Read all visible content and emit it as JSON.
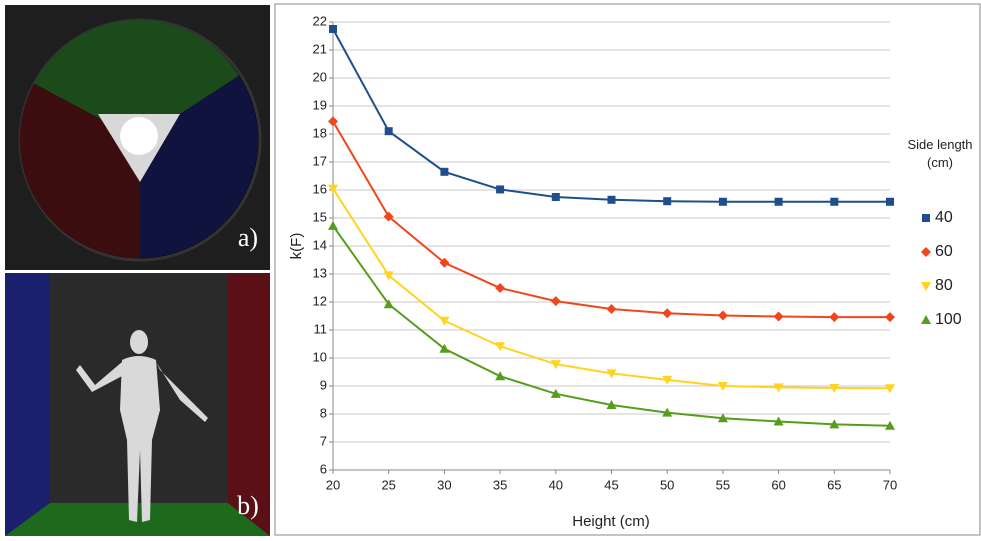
{
  "panels": {
    "a": "a)",
    "b": "b)"
  },
  "chart_data": {
    "type": "line",
    "xlabel": "Height (cm)",
    "ylabel": "k(F)",
    "legend_title": "Side length (cm)",
    "x": [
      20,
      25,
      30,
      35,
      40,
      45,
      50,
      55,
      60,
      65,
      70
    ],
    "xlim": [
      20,
      70
    ],
    "xticks": [
      20,
      25,
      30,
      35,
      40,
      45,
      50,
      55,
      60,
      65,
      70
    ],
    "ylim": [
      6,
      22
    ],
    "yticks": [
      6,
      7,
      8,
      9,
      10,
      11,
      12,
      13,
      14,
      15,
      16,
      17,
      18,
      19,
      20,
      21,
      22
    ],
    "grid": true,
    "legend": "right",
    "series": [
      {
        "name": "40",
        "color": "#1f4e8c",
        "marker": "square",
        "values": [
          21.75,
          18.1,
          16.65,
          16.02,
          15.75,
          15.65,
          15.6,
          15.58,
          15.58,
          15.58,
          15.58
        ]
      },
      {
        "name": "60",
        "color": "#f0461e",
        "marker": "diamond",
        "values": [
          18.45,
          15.05,
          13.4,
          12.5,
          12.03,
          11.75,
          11.6,
          11.52,
          11.48,
          11.46,
          11.46
        ]
      },
      {
        "name": "80",
        "color": "#ffd320",
        "marker": "triangle-down",
        "values": [
          16.05,
          12.95,
          11.33,
          10.42,
          9.78,
          9.45,
          9.22,
          9.0,
          8.95,
          8.93,
          8.92
        ]
      },
      {
        "name": "100",
        "color": "#579d1c",
        "marker": "triangle-up",
        "values": [
          14.72,
          11.92,
          10.33,
          9.35,
          8.72,
          8.32,
          8.05,
          7.85,
          7.73,
          7.63,
          7.58
        ]
      }
    ]
  }
}
